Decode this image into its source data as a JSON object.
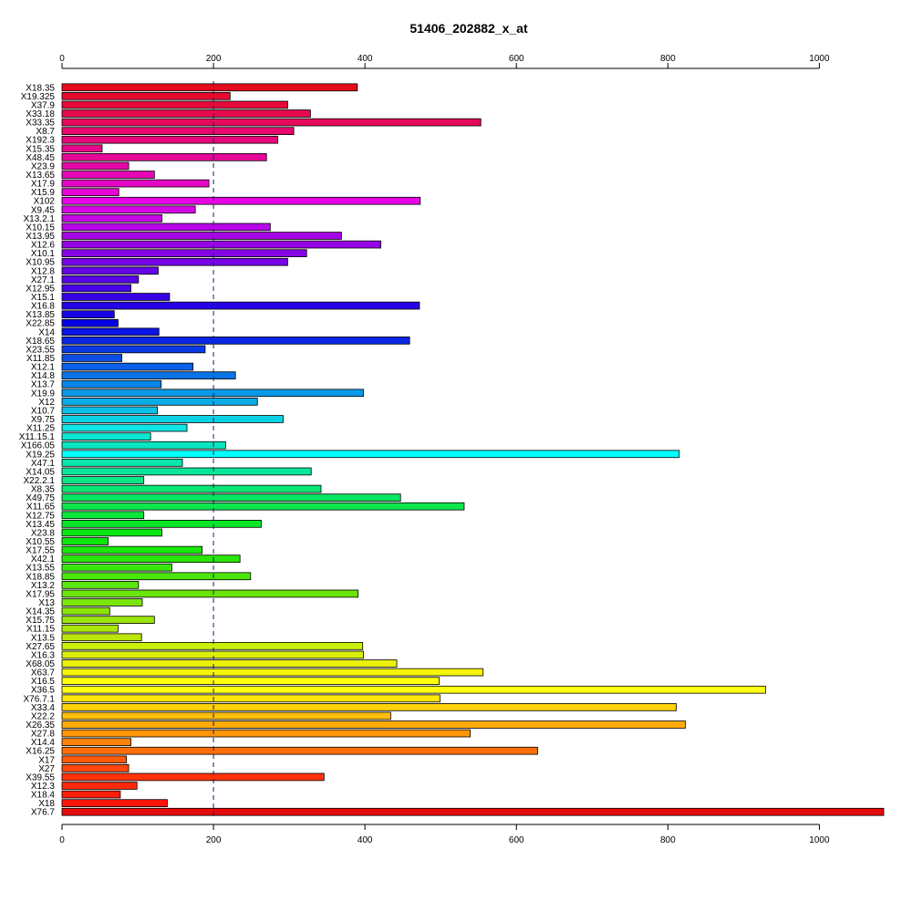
{
  "chart_data": {
    "type": "bar",
    "orientation": "horizontal",
    "title": "51406_202882_x_at",
    "xlabel": "",
    "ylabel": "",
    "xlim": [
      0,
      1085
    ],
    "xticks": [
      0,
      200,
      400,
      600,
      800,
      1000
    ],
    "xtick_labels": [
      "0",
      "200",
      "400",
      "600",
      "800",
      "1000"
    ],
    "reference_line": {
      "value": 200,
      "style": "dashed",
      "color": "#1a1a6e"
    },
    "grid": false,
    "legend": "none",
    "categories": [
      "X18.35",
      "X19.325",
      "X37.9",
      "X33.18",
      "X33.35",
      "X8.7",
      "X192.3",
      "X15.35",
      "X48.45",
      "X23.9",
      "X13.65",
      "X17.9",
      "X15.9",
      "X102",
      "X9.45",
      "X13.2.1",
      "X10.15",
      "X13.95",
      "X12.6",
      "X10.1",
      "X10.95",
      "X12.8",
      "X27.1",
      "X12.95",
      "X15.1",
      "X16.8",
      "X13.85",
      "X22.85",
      "X14",
      "X18.65",
      "X23.55",
      "X11.85",
      "X12.1",
      "X14.8",
      "X13.7",
      "X19.9",
      "X12",
      "X10.7",
      "X9.75",
      "X11.25",
      "X11.15.1",
      "X166.05",
      "X19.25",
      "X47.1",
      "X14.05",
      "X22.2.1",
      "X8.35",
      "X49.75",
      "X11.65",
      "X12.75",
      "X13.45",
      "X23.8",
      "X10.55",
      "X17.55",
      "X42.1",
      "X13.55",
      "X18.85",
      "X13.2",
      "X17.95",
      "X13",
      "X14.35",
      "X15.75",
      "X11.15",
      "X13.5",
      "X27.65",
      "X16.3",
      "X68.05",
      "X63.7",
      "X16.5",
      "X36.5",
      "X76.7.1",
      "X33.4",
      "X22.2",
      "X26.35",
      "X27.8",
      "X14.4",
      "X16.25",
      "X17",
      "X27",
      "X39.55",
      "X12.3",
      "X18.4",
      "X18",
      "X76.7"
    ],
    "values": [
      390,
      222,
      298,
      328,
      553,
      306,
      285,
      53,
      270,
      88,
      122,
      194,
      75,
      473,
      176,
      132,
      275,
      369,
      421,
      323,
      298,
      127,
      101,
      91,
      142,
      472,
      69,
      74,
      128,
      459,
      189,
      79,
      173,
      229,
      131,
      398,
      258,
      126,
      292,
      165,
      117,
      216,
      815,
      159,
      329,
      108,
      342,
      447,
      531,
      108,
      263,
      132,
      61,
      185,
      235,
      145,
      249,
      101,
      391,
      106,
      63,
      122,
      74,
      105,
      397,
      398,
      442,
      556,
      498,
      929,
      499,
      811,
      434,
      823,
      539,
      91,
      628,
      85,
      88,
      346,
      99,
      77,
      139,
      1085
    ],
    "colors": [
      "#e60a1e",
      "#e6092d",
      "#e6093c",
      "#e6094c",
      "#e6095b",
      "#e6086a",
      "#e6087a",
      "#e60889",
      "#e60898",
      "#e607a8",
      "#e607b7",
      "#e607c6",
      "#e606d6",
      "#e606e5",
      "#d606e6",
      "#c606e6",
      "#b605e6",
      "#a605e6",
      "#9605e6",
      "#8605e6",
      "#7604e6",
      "#6604e6",
      "#5604e6",
      "#4603e6",
      "#3603e6",
      "#2603e6",
      "#1603e6",
      "#0603e6",
      "#0a14e6",
      "#0a27e6",
      "#0a3ae6",
      "#0a4de6",
      "#0a60e6",
      "#0a73e6",
      "#0a86e6",
      "#0a99e6",
      "#0aace6",
      "#0abfe6",
      "#0ad2e6",
      "#0ae5e6",
      "#0ae6d2",
      "#0ae6bf",
      "#00ffff",
      "#0ae6ac",
      "#0ae699",
      "#0ae686",
      "#0ae673",
      "#0ae660",
      "#0ae64d",
      "#0ae63a",
      "#0ae627",
      "#0ae614",
      "#0ae60a",
      "#1ae60a",
      "#2ae60a",
      "#3ae60a",
      "#4ae60a",
      "#5ae60a",
      "#6ae60a",
      "#7ae60a",
      "#8ae60a",
      "#9ae60a",
      "#aae60a",
      "#bae60a",
      "#caf00a",
      "#daf00a",
      "#eaf00a",
      "#f5f50a",
      "#ffff0a",
      "#ffff14",
      "#ffe60a",
      "#ffd20a",
      "#ffbe0a",
      "#ffaa0a",
      "#ff960a",
      "#ff820a",
      "#ff6e0a",
      "#ff5a0a",
      "#ff460a",
      "#ff320a",
      "#ff280a",
      "#ff1e0a",
      "#ff140a",
      "#e60a0a"
    ]
  }
}
